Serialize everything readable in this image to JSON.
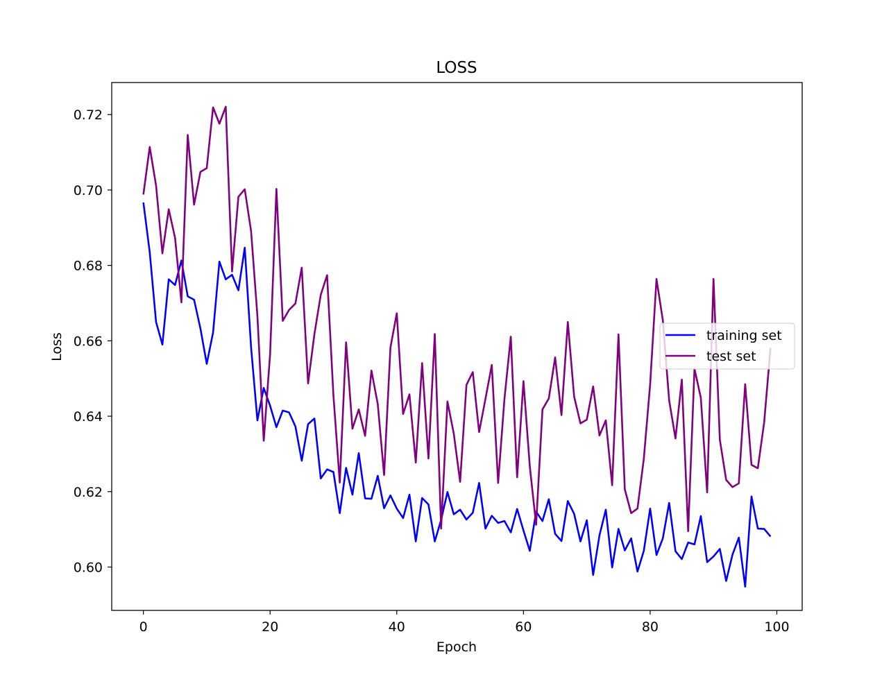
{
  "chart_data": {
    "type": "line",
    "title": "LOSS",
    "xlabel": "Epoch",
    "ylabel": "Loss",
    "xlim": [
      -5,
      104
    ],
    "ylim": [
      0.5885,
      0.7285
    ],
    "xticks": [
      0,
      20,
      40,
      60,
      80,
      100
    ],
    "yticks": [
      0.6,
      0.62,
      0.64,
      0.66,
      0.68,
      0.7,
      0.72
    ],
    "grid": false,
    "legend": "center-right",
    "x": [
      0,
      1,
      2,
      3,
      4,
      5,
      6,
      7,
      8,
      9,
      10,
      11,
      12,
      13,
      14,
      15,
      16,
      17,
      18,
      19,
      20,
      21,
      22,
      23,
      24,
      25,
      26,
      27,
      28,
      29,
      30,
      31,
      32,
      33,
      34,
      35,
      36,
      37,
      38,
      39,
      40,
      41,
      42,
      43,
      44,
      45,
      46,
      47,
      48,
      49,
      50,
      51,
      52,
      53,
      54,
      55,
      56,
      57,
      58,
      59,
      60,
      61,
      62,
      63,
      64,
      65,
      66,
      67,
      68,
      69,
      70,
      71,
      72,
      73,
      74,
      75,
      76,
      77,
      78,
      79,
      80,
      81,
      82,
      83,
      84,
      85,
      86,
      87,
      88,
      89,
      90,
      91,
      92,
      93,
      94,
      95,
      96,
      97,
      98,
      99
    ],
    "series": [
      {
        "name": "training set",
        "color": "#0000ff",
        "values": [
          0.6967,
          0.6835,
          0.665,
          0.659,
          0.6763,
          0.6748,
          0.6813,
          0.6718,
          0.6709,
          0.6633,
          0.6539,
          0.6622,
          0.681,
          0.6763,
          0.6775,
          0.6734,
          0.6847,
          0.6583,
          0.6389,
          0.6475,
          0.6428,
          0.6371,
          0.6415,
          0.641,
          0.6373,
          0.6282,
          0.6379,
          0.6394,
          0.6235,
          0.6259,
          0.6252,
          0.6143,
          0.6263,
          0.6192,
          0.6302,
          0.6182,
          0.6181,
          0.6242,
          0.6156,
          0.619,
          0.6155,
          0.613,
          0.6192,
          0.6068,
          0.6183,
          0.6166,
          0.6068,
          0.6125,
          0.6199,
          0.614,
          0.6152,
          0.6126,
          0.6144,
          0.6223,
          0.6102,
          0.6136,
          0.6117,
          0.6122,
          0.6092,
          0.6154,
          0.6097,
          0.6043,
          0.6147,
          0.6122,
          0.618,
          0.6088,
          0.6069,
          0.6175,
          0.6141,
          0.6068,
          0.6124,
          0.5979,
          0.6084,
          0.6152,
          0.5999,
          0.6101,
          0.6044,
          0.6076,
          0.5988,
          0.6043,
          0.6155,
          0.6032,
          0.6076,
          0.617,
          0.6042,
          0.6021,
          0.6065,
          0.606,
          0.6135,
          0.6013,
          0.6028,
          0.6048,
          0.5963,
          0.6033,
          0.6078,
          0.5948,
          0.6187,
          0.6102,
          0.6101,
          0.6081
        ]
      },
      {
        "name": "test set",
        "color": "#800080",
        "values": [
          0.6988,
          0.7114,
          0.7012,
          0.6832,
          0.6949,
          0.6873,
          0.6702,
          0.7146,
          0.6961,
          0.7048,
          0.7058,
          0.7219,
          0.7176,
          0.7221,
          0.6784,
          0.6982,
          0.7002,
          0.6891,
          0.6666,
          0.6335,
          0.6564,
          0.7003,
          0.6653,
          0.6682,
          0.6699,
          0.6794,
          0.6487,
          0.6618,
          0.6722,
          0.6774,
          0.6455,
          0.6224,
          0.6596,
          0.6367,
          0.6418,
          0.6348,
          0.6521,
          0.6432,
          0.6244,
          0.6582,
          0.6673,
          0.6406,
          0.6458,
          0.6277,
          0.6541,
          0.6288,
          0.6618,
          0.6102,
          0.6439,
          0.6354,
          0.6226,
          0.6483,
          0.6517,
          0.6358,
          0.6446,
          0.6536,
          0.6223,
          0.6446,
          0.6611,
          0.6238,
          0.6493,
          0.6267,
          0.6112,
          0.6418,
          0.6447,
          0.6556,
          0.6403,
          0.665,
          0.6452,
          0.6381,
          0.6391,
          0.6479,
          0.6349,
          0.6389,
          0.6217,
          0.6617,
          0.6206,
          0.6143,
          0.6155,
          0.6287,
          0.6485,
          0.6764,
          0.6655,
          0.6442,
          0.6341,
          0.6497,
          0.6095,
          0.6526,
          0.6449,
          0.6198,
          0.6764,
          0.6338,
          0.6231,
          0.6212,
          0.6222,
          0.6485,
          0.6271,
          0.6262,
          0.6384,
          0.6581
        ]
      }
    ]
  }
}
